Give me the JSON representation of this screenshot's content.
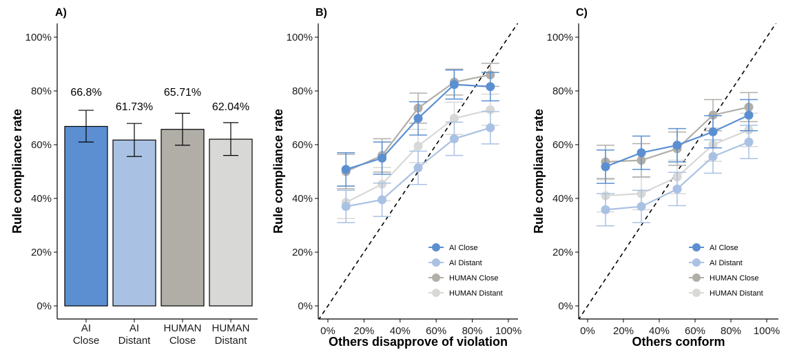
{
  "chart_data": [
    {
      "type": "bar",
      "panel_tag": "A)",
      "ylabel": "Rule compliance rate",
      "ylim": [
        0,
        100
      ],
      "yticks": [
        "0%",
        "20%",
        "40%",
        "60%",
        "80%",
        "100%"
      ],
      "categories": [
        [
          "AI",
          "Close"
        ],
        [
          "AI",
          "Distant"
        ],
        [
          "HUMAN",
          "Close"
        ],
        [
          "HUMAN",
          "Distant"
        ]
      ],
      "values": [
        66.8,
        61.73,
        65.71,
        62.04
      ],
      "value_labels": [
        "66.8%",
        "61.73%",
        "65.71%",
        "62.04%"
      ],
      "error_low": [
        61.0,
        55.6,
        59.8,
        56.0
      ],
      "error_high": [
        72.8,
        67.9,
        71.7,
        68.2
      ],
      "colors": [
        "#5b8fd1",
        "#a9c1e3",
        "#b1aea8",
        "#d8d8d6"
      ]
    },
    {
      "type": "line",
      "panel_tag": "B)",
      "xlabel": "Others disapprove of violation",
      "ylabel": "Rule compliance rate",
      "xlim": [
        0,
        100
      ],
      "ylim": [
        0,
        100
      ],
      "xticks": [
        "0%",
        "20%",
        "40%",
        "60%",
        "80%",
        "100%"
      ],
      "yticks": [
        "0%",
        "20%",
        "40%",
        "60%",
        "80%",
        "100%"
      ],
      "x": [
        10,
        30,
        50,
        70,
        90
      ],
      "diagonal": true,
      "legend_position": "bottom-right",
      "series": [
        {
          "name": "AI Close",
          "color": "#5b8fd1",
          "values": [
            50.8,
            55.0,
            69.8,
            82.4,
            81.6
          ],
          "err": [
            6.2,
            6.0,
            6.2,
            5.4,
            5.3
          ]
        },
        {
          "name": "AI Distant",
          "color": "#a9c1e3",
          "values": [
            37.0,
            39.5,
            51.4,
            62.2,
            66.3
          ],
          "err": [
            6.0,
            6.2,
            6.2,
            6.2,
            6.0
          ]
        },
        {
          "name": "HUMAN Close",
          "color": "#b1aea8",
          "values": [
            50.0,
            56.0,
            73.6,
            83.3,
            86.0
          ],
          "err": [
            6.4,
            6.2,
            5.6,
            4.8,
            4.3
          ]
        },
        {
          "name": "HUMAN Distant",
          "color": "#d8d8d6",
          "values": [
            38.5,
            45.3,
            59.5,
            69.8,
            73.0
          ],
          "err": [
            6.0,
            6.2,
            6.2,
            6.0,
            5.8
          ]
        }
      ]
    },
    {
      "type": "line",
      "panel_tag": "C)",
      "xlabel": "Others conform",
      "ylabel": "Rule compliance rate",
      "xlim": [
        0,
        100
      ],
      "ylim": [
        0,
        100
      ],
      "xticks": [
        "0%",
        "20%",
        "40%",
        "60%",
        "80%",
        "100%"
      ],
      "yticks": [
        "0%",
        "20%",
        "40%",
        "60%",
        "80%",
        "100%"
      ],
      "x": [
        10,
        30,
        50,
        70,
        90
      ],
      "diagonal": true,
      "legend_position": "bottom-right",
      "series": [
        {
          "name": "AI Close",
          "color": "#5b8fd1",
          "values": [
            51.8,
            57.0,
            59.8,
            64.8,
            71.0
          ],
          "err": [
            6.2,
            6.2,
            6.2,
            6.0,
            5.8
          ]
        },
        {
          "name": "AI Distant",
          "color": "#a9c1e3",
          "values": [
            35.8,
            37.0,
            43.5,
            55.6,
            61.0
          ],
          "err": [
            6.0,
            6.0,
            6.2,
            6.2,
            6.2
          ]
        },
        {
          "name": "HUMAN Close",
          "color": "#b1aea8",
          "values": [
            53.6,
            54.2,
            58.5,
            71.0,
            74.0
          ],
          "err": [
            6.2,
            6.2,
            6.2,
            5.8,
            5.4
          ]
        },
        {
          "name": "HUMAN Distant",
          "color": "#d8d8d6",
          "values": [
            41.0,
            41.8,
            48.0,
            60.0,
            65.5
          ],
          "err": [
            6.0,
            6.0,
            6.2,
            6.2,
            6.2
          ]
        }
      ]
    }
  ]
}
